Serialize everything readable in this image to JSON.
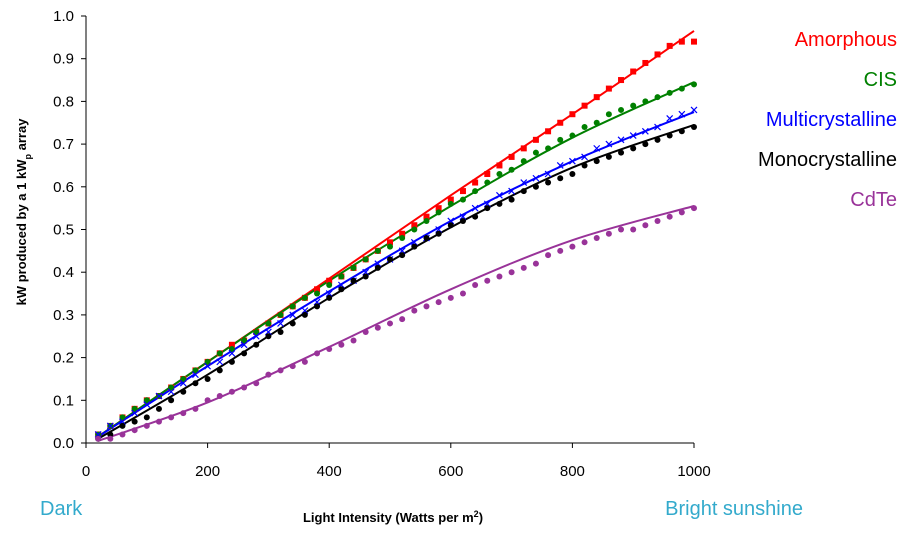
{
  "chart_data": {
    "type": "scatter",
    "xlabel_main": "Light Intensity (Watts per m",
    "xlabel_sup": "2",
    "xlabel_end": ")",
    "ylabel_main": "kW produced by a 1 kW",
    "ylabel_sub": "p",
    "ylabel_end": " array",
    "xlim": [
      0,
      1000
    ],
    "ylim": [
      0,
      1.0
    ],
    "xticks": [
      "0",
      "200",
      "400",
      "600",
      "800",
      "1000"
    ],
    "yticks": [
      "0.0",
      "0.1",
      "0.2",
      "0.3",
      "0.4",
      "0.5",
      "0.6",
      "0.7",
      "0.8",
      "0.9",
      "1.0"
    ],
    "legend_position": "right",
    "grid": false,
    "annotations": {
      "left": "Dark",
      "right": "Bright sunshine",
      "color": "#33AACC"
    },
    "series": [
      {
        "name": "Amorphous",
        "color": "#FF0000",
        "marker": "square",
        "x": [
          20,
          40,
          60,
          80,
          100,
          120,
          140,
          160,
          180,
          200,
          220,
          240,
          260,
          280,
          300,
          320,
          340,
          360,
          380,
          400,
          420,
          440,
          460,
          480,
          500,
          520,
          540,
          560,
          580,
          600,
          620,
          640,
          660,
          680,
          700,
          720,
          740,
          760,
          780,
          800,
          820,
          840,
          860,
          880,
          900,
          920,
          940,
          960,
          980,
          1000
        ],
        "y": [
          0.02,
          0.04,
          0.06,
          0.08,
          0.1,
          0.11,
          0.13,
          0.15,
          0.17,
          0.19,
          0.21,
          0.23,
          0.24,
          0.26,
          0.28,
          0.3,
          0.32,
          0.34,
          0.36,
          0.38,
          0.39,
          0.41,
          0.43,
          0.45,
          0.47,
          0.49,
          0.51,
          0.53,
          0.55,
          0.57,
          0.59,
          0.61,
          0.63,
          0.65,
          0.67,
          0.69,
          0.71,
          0.73,
          0.75,
          0.77,
          0.79,
          0.81,
          0.83,
          0.85,
          0.87,
          0.89,
          0.91,
          0.93,
          0.94,
          0.94
        ],
        "fit_x": [
          20,
          200,
          400,
          600,
          800,
          1000
        ],
        "fit_y": [
          0.015,
          0.19,
          0.385,
          0.58,
          0.77,
          0.965
        ]
      },
      {
        "name": "CIS",
        "color": "#008000",
        "marker": "circle",
        "x": [
          20,
          40,
          60,
          80,
          100,
          120,
          140,
          160,
          180,
          200,
          220,
          240,
          260,
          280,
          300,
          320,
          340,
          360,
          380,
          400,
          420,
          440,
          460,
          480,
          500,
          520,
          540,
          560,
          580,
          600,
          620,
          640,
          660,
          680,
          700,
          720,
          740,
          760,
          780,
          800,
          820,
          840,
          860,
          880,
          900,
          920,
          940,
          960,
          980,
          1000
        ],
        "y": [
          0.02,
          0.04,
          0.06,
          0.08,
          0.1,
          0.11,
          0.13,
          0.15,
          0.17,
          0.19,
          0.21,
          0.22,
          0.24,
          0.26,
          0.28,
          0.3,
          0.32,
          0.34,
          0.35,
          0.37,
          0.39,
          0.41,
          0.43,
          0.45,
          0.46,
          0.48,
          0.5,
          0.52,
          0.54,
          0.56,
          0.57,
          0.59,
          0.61,
          0.63,
          0.64,
          0.66,
          0.68,
          0.69,
          0.71,
          0.72,
          0.74,
          0.75,
          0.77,
          0.78,
          0.79,
          0.8,
          0.81,
          0.82,
          0.83,
          0.84
        ],
        "fit_x": [
          20,
          200,
          400,
          600,
          800,
          1000
        ],
        "fit_y": [
          0.015,
          0.19,
          0.38,
          0.555,
          0.715,
          0.845
        ]
      },
      {
        "name": "Multicrystalline",
        "color": "#0000FF",
        "marker": "cross",
        "x": [
          20,
          40,
          60,
          80,
          100,
          120,
          140,
          160,
          180,
          200,
          220,
          240,
          260,
          280,
          300,
          320,
          340,
          360,
          380,
          400,
          420,
          440,
          460,
          480,
          500,
          520,
          540,
          560,
          580,
          600,
          620,
          640,
          660,
          680,
          700,
          720,
          740,
          760,
          780,
          800,
          820,
          840,
          860,
          880,
          900,
          920,
          940,
          960,
          980,
          1000
        ],
        "y": [
          0.02,
          0.04,
          0.05,
          0.07,
          0.09,
          0.11,
          0.12,
          0.14,
          0.16,
          0.18,
          0.19,
          0.21,
          0.23,
          0.25,
          0.26,
          0.28,
          0.3,
          0.31,
          0.33,
          0.35,
          0.37,
          0.38,
          0.4,
          0.42,
          0.43,
          0.45,
          0.47,
          0.48,
          0.5,
          0.52,
          0.53,
          0.55,
          0.56,
          0.58,
          0.59,
          0.61,
          0.62,
          0.63,
          0.65,
          0.66,
          0.67,
          0.69,
          0.7,
          0.71,
          0.72,
          0.73,
          0.74,
          0.76,
          0.77,
          0.78
        ],
        "fit_x": [
          20,
          200,
          400,
          600,
          800,
          1000
        ],
        "fit_y": [
          0.015,
          0.18,
          0.355,
          0.52,
          0.66,
          0.775
        ]
      },
      {
        "name": "Monocrystalline",
        "color": "#000000",
        "marker": "circle",
        "x": [
          20,
          40,
          60,
          80,
          100,
          120,
          140,
          160,
          180,
          200,
          220,
          240,
          260,
          280,
          300,
          320,
          340,
          360,
          380,
          400,
          420,
          440,
          460,
          480,
          500,
          520,
          540,
          560,
          580,
          600,
          620,
          640,
          660,
          680,
          700,
          720,
          740,
          760,
          780,
          800,
          820,
          840,
          860,
          880,
          900,
          920,
          940,
          960,
          980,
          1000
        ],
        "y": [
          0.01,
          0.02,
          0.04,
          0.05,
          0.06,
          0.08,
          0.1,
          0.12,
          0.14,
          0.15,
          0.17,
          0.19,
          0.21,
          0.23,
          0.25,
          0.26,
          0.28,
          0.3,
          0.32,
          0.34,
          0.36,
          0.38,
          0.39,
          0.41,
          0.43,
          0.44,
          0.46,
          0.48,
          0.49,
          0.51,
          0.52,
          0.53,
          0.55,
          0.56,
          0.57,
          0.59,
          0.6,
          0.61,
          0.62,
          0.63,
          0.65,
          0.66,
          0.67,
          0.68,
          0.69,
          0.7,
          0.71,
          0.72,
          0.73,
          0.74
        ],
        "fit_x": [
          20,
          200,
          400,
          600,
          800,
          1000
        ],
        "fit_y": [
          0.01,
          0.16,
          0.34,
          0.505,
          0.645,
          0.745
        ]
      },
      {
        "name": "CdTe",
        "color": "#993399",
        "marker": "circle",
        "x": [
          20,
          40,
          60,
          80,
          100,
          120,
          140,
          160,
          180,
          200,
          220,
          240,
          260,
          280,
          300,
          320,
          340,
          360,
          380,
          400,
          420,
          440,
          460,
          480,
          500,
          520,
          540,
          560,
          580,
          600,
          620,
          640,
          660,
          680,
          700,
          720,
          740,
          760,
          780,
          800,
          820,
          840,
          860,
          880,
          900,
          920,
          940,
          960,
          980,
          1000
        ],
        "y": [
          0.01,
          0.01,
          0.02,
          0.03,
          0.04,
          0.05,
          0.06,
          0.07,
          0.08,
          0.1,
          0.11,
          0.12,
          0.13,
          0.14,
          0.16,
          0.17,
          0.18,
          0.19,
          0.21,
          0.22,
          0.23,
          0.24,
          0.26,
          0.27,
          0.28,
          0.29,
          0.31,
          0.32,
          0.33,
          0.34,
          0.35,
          0.37,
          0.38,
          0.39,
          0.4,
          0.41,
          0.42,
          0.44,
          0.45,
          0.46,
          0.47,
          0.48,
          0.49,
          0.5,
          0.5,
          0.51,
          0.52,
          0.53,
          0.54,
          0.55
        ],
        "fit_x": [
          20,
          200,
          400,
          600,
          800,
          1000
        ],
        "fit_y": [
          0.005,
          0.095,
          0.225,
          0.36,
          0.475,
          0.555
        ]
      }
    ]
  }
}
